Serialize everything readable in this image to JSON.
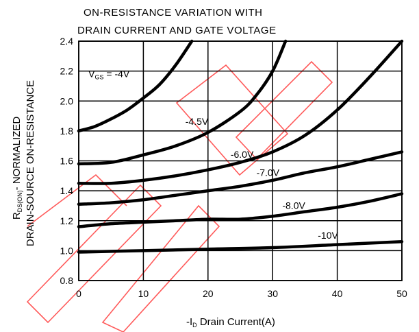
{
  "chart_data": {
    "type": "line",
    "title_line1": "ON-RESISTANCE VARIATION WITH",
    "title_line2": "DRAIN CURRENT AND GATE VOLTAGE",
    "xlabel_prefix": "-I",
    "xlabel_sub": "D",
    "xlabel_suffix": " Drain Current(A)",
    "ylabel_line1_prefix": "R",
    "ylabel_line1_sub": "DS(ON)",
    "ylabel_line1_suffix": "- NORMALIZED",
    "ylabel_line2": "DRAIN-SOURCE ON-RESISTANCE",
    "xlim": [
      0,
      50
    ],
    "ylim": [
      0.8,
      2.4
    ],
    "xticks": [
      0,
      10,
      20,
      30,
      40,
      50
    ],
    "yticks": [
      0.8,
      1.0,
      1.2,
      1.4,
      1.6,
      1.8,
      2.0,
      2.2,
      2.4
    ],
    "grid": true,
    "series": [
      {
        "name": "V_GS = -4V",
        "label_prefix": "V",
        "label_sub": "GS",
        "label_suffix": " = -4V",
        "x": [
          0,
          2.5,
          5,
          7.5,
          10,
          12.5,
          15,
          17.5
        ],
        "y": [
          1.8,
          1.83,
          1.88,
          1.94,
          2.02,
          2.11,
          2.24,
          2.4
        ]
      },
      {
        "name": "-4.5V",
        "label": "-4.5V",
        "x": [
          0,
          5,
          10,
          15,
          20,
          25,
          27.5,
          30,
          32
        ],
        "y": [
          1.58,
          1.59,
          1.64,
          1.7,
          1.79,
          1.93,
          2.04,
          2.2,
          2.4
        ]
      },
      {
        "name": "-6.0V",
        "label": "-6.0V",
        "x": [
          0,
          5,
          10,
          15,
          20,
          25,
          30,
          35,
          40,
          45,
          50
        ],
        "y": [
          1.45,
          1.45,
          1.47,
          1.5,
          1.54,
          1.59,
          1.66,
          1.77,
          1.94,
          2.16,
          2.4
        ]
      },
      {
        "name": "-7.0V",
        "label": "-7.0V",
        "x": [
          0,
          5,
          10,
          15,
          20,
          25,
          30,
          35,
          40,
          45,
          50
        ],
        "y": [
          1.31,
          1.32,
          1.34,
          1.37,
          1.4,
          1.43,
          1.47,
          1.52,
          1.56,
          1.61,
          1.66
        ]
      },
      {
        "name": "-8.0V",
        "label": "-8.0V",
        "x": [
          0,
          5,
          10,
          15,
          20,
          25,
          30,
          35,
          40,
          45,
          50
        ],
        "y": [
          1.16,
          1.18,
          1.19,
          1.2,
          1.21,
          1.21,
          1.23,
          1.26,
          1.29,
          1.33,
          1.38
        ]
      },
      {
        "name": "-10V",
        "label": "-10V",
        "x": [
          0,
          10,
          20,
          30,
          40,
          50
        ],
        "y": [
          0.99,
          1.0,
          1.01,
          1.02,
          1.04,
          1.06
        ]
      }
    ],
    "annotations": [
      {
        "series": 0,
        "label_x": 1.5,
        "label_y": 2.16
      },
      {
        "series": 1,
        "label_x": 16.5,
        "label_y": 1.84
      },
      {
        "series": 2,
        "label_x": 23.5,
        "label_y": 1.62
      },
      {
        "series": 3,
        "label_x": 27.5,
        "label_y": 1.5
      },
      {
        "series": 4,
        "label_x": 31.5,
        "label_y": 1.28
      },
      {
        "series": 5,
        "label_x": 37.0,
        "label_y": 1.08
      }
    ],
    "colors": {
      "line": "#000000",
      "grid": "#000000",
      "watermark": "#ff5a5a"
    }
  }
}
